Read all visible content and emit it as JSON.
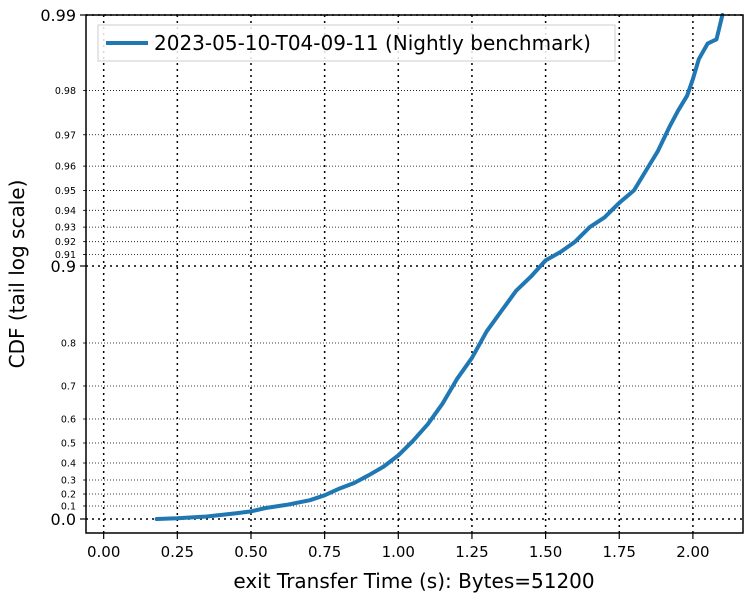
{
  "chart_data": {
    "type": "line",
    "xlabel": "exit Transfer Time (s): Bytes=51200",
    "ylabel": "CDF (tail log scale)",
    "xlim": [
      -0.06,
      2.17
    ],
    "x_ticks": [
      {
        "value": 0.0,
        "label": "0.00"
      },
      {
        "value": 0.25,
        "label": "0.25"
      },
      {
        "value": 0.5,
        "label": "0.50"
      },
      {
        "value": 0.75,
        "label": "0.75"
      },
      {
        "value": 1.0,
        "label": "1.00"
      },
      {
        "value": 1.25,
        "label": "1.25"
      },
      {
        "value": 1.5,
        "label": "1.50"
      },
      {
        "value": 1.75,
        "label": "1.75"
      },
      {
        "value": 2.0,
        "label": "2.00"
      }
    ],
    "y_scale": "tail log",
    "y_major_ticks": [
      {
        "value": 0.0,
        "label": "0.0"
      },
      {
        "value": 0.9,
        "label": "0.9"
      },
      {
        "value": 0.99,
        "label": "0.99"
      }
    ],
    "y_minor_ticks": [
      {
        "value": 0.1,
        "label": "0.1"
      },
      {
        "value": 0.2,
        "label": "0.2"
      },
      {
        "value": 0.3,
        "label": "0.3"
      },
      {
        "value": 0.4,
        "label": "0.4"
      },
      {
        "value": 0.5,
        "label": "0.5"
      },
      {
        "value": 0.6,
        "label": "0.6"
      },
      {
        "value": 0.7,
        "label": "0.7"
      },
      {
        "value": 0.8,
        "label": "0.8"
      },
      {
        "value": 0.91,
        "label": "0.91"
      },
      {
        "value": 0.92,
        "label": "0.92"
      },
      {
        "value": 0.93,
        "label": "0.93"
      },
      {
        "value": 0.94,
        "label": "0.94"
      },
      {
        "value": 0.95,
        "label": "0.95"
      },
      {
        "value": 0.96,
        "label": "0.96"
      },
      {
        "value": 0.97,
        "label": "0.97"
      },
      {
        "value": 0.98,
        "label": "0.98"
      }
    ],
    "grid": true,
    "legend_position": "top-left",
    "series": [
      {
        "name": "2023-05-10-T04-09-11 (Nightly benchmark)",
        "color": "#1f77b4",
        "points": [
          [
            0.18,
            0.0
          ],
          [
            0.25,
            0.006
          ],
          [
            0.35,
            0.02
          ],
          [
            0.45,
            0.045
          ],
          [
            0.5,
            0.06
          ],
          [
            0.55,
            0.085
          ],
          [
            0.62,
            0.11
          ],
          [
            0.7,
            0.15
          ],
          [
            0.75,
            0.19
          ],
          [
            0.8,
            0.24
          ],
          [
            0.85,
            0.28
          ],
          [
            0.9,
            0.33
          ],
          [
            0.95,
            0.38
          ],
          [
            1.0,
            0.44
          ],
          [
            1.05,
            0.51
          ],
          [
            1.1,
            0.58
          ],
          [
            1.15,
            0.65
          ],
          [
            1.2,
            0.72
          ],
          [
            1.25,
            0.77
          ],
          [
            1.3,
            0.82
          ],
          [
            1.35,
            0.85
          ],
          [
            1.4,
            0.875
          ],
          [
            1.45,
            0.89
          ],
          [
            1.5,
            0.905
          ],
          [
            1.55,
            0.912
          ],
          [
            1.6,
            0.92
          ],
          [
            1.65,
            0.93
          ],
          [
            1.7,
            0.936
          ],
          [
            1.75,
            0.944
          ],
          [
            1.8,
            0.95
          ],
          [
            1.85,
            0.96
          ],
          [
            1.88,
            0.965
          ],
          [
            1.92,
            0.972
          ],
          [
            1.95,
            0.976
          ],
          [
            1.98,
            0.979
          ],
          [
            2.0,
            0.982
          ],
          [
            2.02,
            0.985
          ],
          [
            2.05,
            0.987
          ],
          [
            2.08,
            0.9875
          ],
          [
            2.1,
            0.99
          ]
        ]
      }
    ]
  }
}
